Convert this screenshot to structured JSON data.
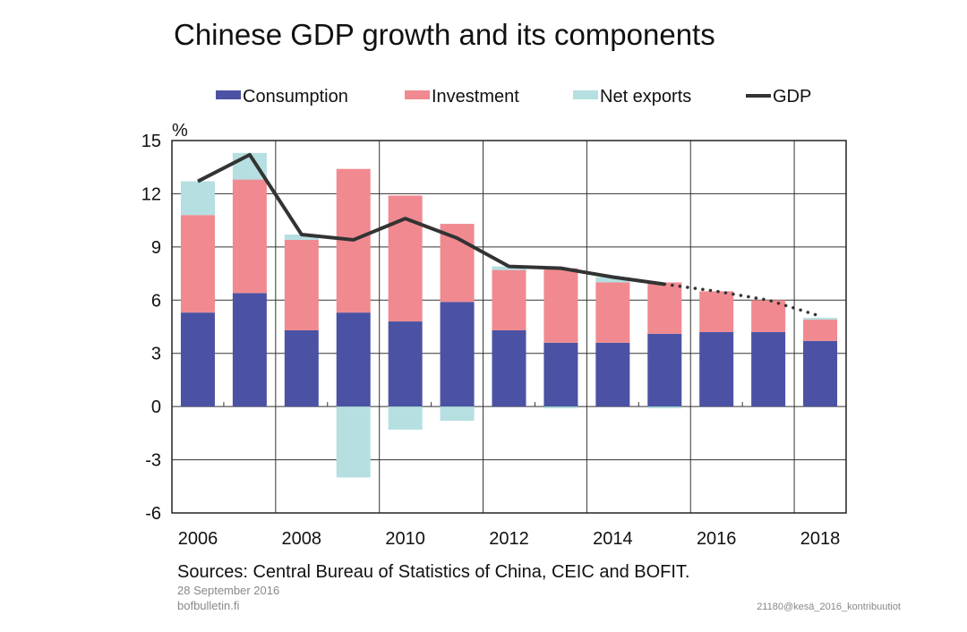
{
  "chart_data": {
    "type": "bar",
    "stacked": true,
    "title": "Chinese GDP growth and its components",
    "ylabel": "%",
    "xlabel": "",
    "ylim": [
      -6,
      15
    ],
    "yticks": [
      15,
      12,
      9,
      6,
      3,
      0,
      -3,
      -6
    ],
    "categories": [
      "2006",
      "2007",
      "2008",
      "2009",
      "2010",
      "2011",
      "2012",
      "2013",
      "2014",
      "2015",
      "2016",
      "2017",
      "2018"
    ],
    "xtick_labels": [
      "2006",
      "2008",
      "2010",
      "2012",
      "2014",
      "2016",
      "2018"
    ],
    "grid": true,
    "legend_position": "top",
    "series": [
      {
        "name": "Consumption",
        "type": "bar",
        "color": "#4b52a3",
        "values": [
          5.3,
          6.4,
          4.3,
          5.3,
          4.8,
          5.9,
          4.3,
          3.6,
          3.6,
          4.1,
          4.2,
          4.2,
          3.7
        ]
      },
      {
        "name": "Investment",
        "type": "bar",
        "color": "#f08a90",
        "values": [
          5.5,
          6.4,
          5.1,
          8.1,
          7.1,
          4.4,
          3.4,
          4.2,
          3.4,
          2.9,
          2.3,
          1.8,
          1.2
        ]
      },
      {
        "name": "Net exports",
        "type": "bar",
        "color": "#b5dfe0",
        "values": [
          1.9,
          1.5,
          0.3,
          -4.0,
          -1.3,
          -0.8,
          0.2,
          -0.1,
          0.3,
          -0.1,
          0.0,
          0.0,
          0.1
        ]
      },
      {
        "name": "GDP",
        "type": "line",
        "color": "#333333",
        "values": [
          12.7,
          14.2,
          9.7,
          9.4,
          10.6,
          9.5,
          7.9,
          7.8,
          7.3,
          6.9,
          6.5,
          6.0,
          5.1
        ],
        "forecast_from_index": 9
      }
    ]
  },
  "footer": {
    "sources": "Sources: Central Bureau of Statistics of China, CEIC and BOFIT.",
    "date": "28 September 2016",
    "site": "bofbulletin.fi",
    "code": "21180@kesä_2016_kontribuutiot"
  }
}
